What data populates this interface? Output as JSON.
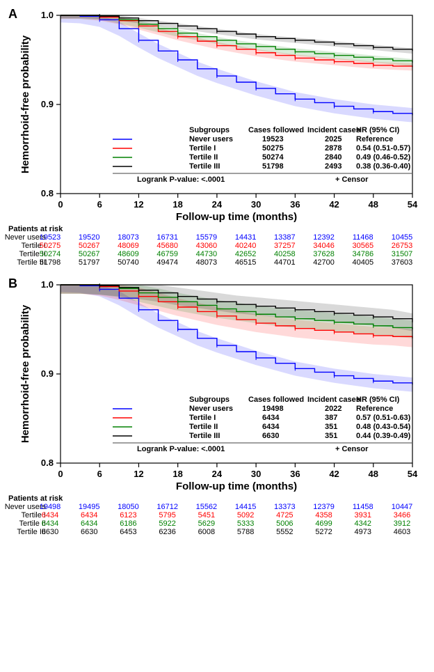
{
  "colors": {
    "never": "#0000ff",
    "t1": "#ff0000",
    "t2": "#008000",
    "t3": "#000000",
    "axis": "#000000",
    "bg": "#ffffff"
  },
  "panelA": {
    "label": "A",
    "ylabel": "Hemorrhoid-free probability",
    "xlabel": "Follow-up time (months)",
    "ylim": [
      0.8,
      1.0
    ],
    "yticks": [
      0.8,
      0.9,
      1.0
    ],
    "xlim": [
      0,
      54
    ],
    "xticks": [
      0,
      6,
      12,
      18,
      24,
      30,
      36,
      42,
      48,
      54
    ],
    "legend": {
      "headers": [
        "Subgroups",
        "Cases followed",
        "Incident cases",
        "HR (95% CI)"
      ],
      "rows": [
        {
          "color": "#0000ff",
          "name": "Never users",
          "cases": "19523",
          "incident": "2025",
          "hr": "Reference"
        },
        {
          "color": "#ff0000",
          "name": "Tertile I",
          "cases": "50275",
          "incident": "2878",
          "hr": "0.54 (0.51-0.57)"
        },
        {
          "color": "#008000",
          "name": "Tertile II",
          "cases": "50274",
          "incident": "2840",
          "hr": "0.49 (0.46-0.52)"
        },
        {
          "color": "#000000",
          "name": "Tertile III",
          "cases": "51798",
          "incident": "2493",
          "hr": "0.38 (0.36-0.40)"
        }
      ],
      "footer1": "Logrank P-value: <.0001",
      "footer2": "+ Censor"
    },
    "curves": {
      "never": [
        [
          0,
          1.0
        ],
        [
          3,
          0.999
        ],
        [
          6,
          0.995
        ],
        [
          9,
          0.985
        ],
        [
          12,
          0.972
        ],
        [
          15,
          0.96
        ],
        [
          18,
          0.95
        ],
        [
          21,
          0.94
        ],
        [
          24,
          0.932
        ],
        [
          27,
          0.925
        ],
        [
          30,
          0.918
        ],
        [
          33,
          0.912
        ],
        [
          36,
          0.906
        ],
        [
          39,
          0.902
        ],
        [
          42,
          0.898
        ],
        [
          45,
          0.895
        ],
        [
          48,
          0.892
        ],
        [
          51,
          0.89
        ],
        [
          54,
          0.888
        ]
      ],
      "t1": [
        [
          0,
          1.0
        ],
        [
          3,
          1.0
        ],
        [
          6,
          0.998
        ],
        [
          9,
          0.994
        ],
        [
          12,
          0.988
        ],
        [
          15,
          0.982
        ],
        [
          18,
          0.976
        ],
        [
          21,
          0.971
        ],
        [
          24,
          0.966
        ],
        [
          27,
          0.962
        ],
        [
          30,
          0.958
        ],
        [
          33,
          0.955
        ],
        [
          36,
          0.952
        ],
        [
          39,
          0.95
        ],
        [
          42,
          0.948
        ],
        [
          45,
          0.946
        ],
        [
          48,
          0.944
        ],
        [
          51,
          0.943
        ],
        [
          54,
          0.942
        ]
      ],
      "t2": [
        [
          0,
          1.0
        ],
        [
          3,
          1.0
        ],
        [
          6,
          0.999
        ],
        [
          9,
          0.995
        ],
        [
          12,
          0.99
        ],
        [
          15,
          0.985
        ],
        [
          18,
          0.98
        ],
        [
          21,
          0.976
        ],
        [
          24,
          0.972
        ],
        [
          27,
          0.968
        ],
        [
          30,
          0.965
        ],
        [
          33,
          0.962
        ],
        [
          36,
          0.959
        ],
        [
          39,
          0.957
        ],
        [
          42,
          0.955
        ],
        [
          45,
          0.953
        ],
        [
          48,
          0.951
        ],
        [
          51,
          0.949
        ],
        [
          54,
          0.947
        ]
      ],
      "t3": [
        [
          0,
          1.0
        ],
        [
          3,
          1.0
        ],
        [
          6,
          0.999
        ],
        [
          9,
          0.997
        ],
        [
          12,
          0.994
        ],
        [
          15,
          0.991
        ],
        [
          18,
          0.988
        ],
        [
          21,
          0.985
        ],
        [
          24,
          0.982
        ],
        [
          27,
          0.979
        ],
        [
          30,
          0.976
        ],
        [
          33,
          0.974
        ],
        [
          36,
          0.972
        ],
        [
          39,
          0.97
        ],
        [
          42,
          0.968
        ],
        [
          45,
          0.966
        ],
        [
          48,
          0.964
        ],
        [
          51,
          0.962
        ],
        [
          54,
          0.96
        ]
      ]
    },
    "ci_width": {
      "never": 0.008,
      "t1": 0.004,
      "t2": 0.004,
      "t3": 0.003
    },
    "risk": {
      "title": "Patients at risk",
      "labels": [
        "Never users",
        "Tertile I",
        "Tertile II",
        "Tertile III"
      ],
      "colors": [
        "#0000ff",
        "#ff0000",
        "#008000",
        "#000000"
      ],
      "rows": [
        [
          "19523",
          "19520",
          "18073",
          "16731",
          "15579",
          "14431",
          "13387",
          "12392",
          "11468",
          "10455"
        ],
        [
          "50275",
          "50267",
          "48069",
          "45680",
          "43060",
          "40240",
          "37257",
          "34046",
          "30565",
          "26753"
        ],
        [
          "50274",
          "50267",
          "48609",
          "46759",
          "44730",
          "42652",
          "40258",
          "37628",
          "34786",
          "31507"
        ],
        [
          "51798",
          "51797",
          "50740",
          "49474",
          "48073",
          "46515",
          "44701",
          "42700",
          "40405",
          "37603"
        ]
      ]
    }
  },
  "panelB": {
    "label": "B",
    "ylabel": "Hemorrhoid-free probability",
    "xlabel": "Follow-up time (months)",
    "ylim": [
      0.8,
      1.0
    ],
    "yticks": [
      0.8,
      0.9,
      1.0
    ],
    "xlim": [
      0,
      54
    ],
    "xticks": [
      0,
      6,
      12,
      18,
      24,
      30,
      36,
      42,
      48,
      54
    ],
    "legend": {
      "headers": [
        "Subgroups",
        "Cases followed",
        "Incident cases",
        "HR (95% CI)"
      ],
      "rows": [
        {
          "color": "#0000ff",
          "name": "Never users",
          "cases": "19498",
          "incident": "2022",
          "hr": "Reference"
        },
        {
          "color": "#ff0000",
          "name": "Tertile I",
          "cases": "6434",
          "incident": "387",
          "hr": "0.57 (0.51-0.63)"
        },
        {
          "color": "#008000",
          "name": "Tertile II",
          "cases": "6434",
          "incident": "351",
          "hr": "0.48 (0.43-0.54)"
        },
        {
          "color": "#000000",
          "name": "Tertile III",
          "cases": "6630",
          "incident": "351",
          "hr": "0.44 (0.39-0.49)"
        }
      ],
      "footer1": "Logrank P-value: <.0001",
      "footer2": "+ Censor"
    },
    "curves": {
      "never": [
        [
          0,
          1.0
        ],
        [
          3,
          0.999
        ],
        [
          6,
          0.995
        ],
        [
          9,
          0.985
        ],
        [
          12,
          0.972
        ],
        [
          15,
          0.96
        ],
        [
          18,
          0.95
        ],
        [
          21,
          0.94
        ],
        [
          24,
          0.932
        ],
        [
          27,
          0.925
        ],
        [
          30,
          0.918
        ],
        [
          33,
          0.912
        ],
        [
          36,
          0.906
        ],
        [
          39,
          0.902
        ],
        [
          42,
          0.898
        ],
        [
          45,
          0.895
        ],
        [
          48,
          0.892
        ],
        [
          51,
          0.89
        ],
        [
          54,
          0.888
        ]
      ],
      "t1": [
        [
          0,
          1.0
        ],
        [
          3,
          1.0
        ],
        [
          6,
          0.998
        ],
        [
          9,
          0.993
        ],
        [
          12,
          0.987
        ],
        [
          15,
          0.981
        ],
        [
          18,
          0.975
        ],
        [
          21,
          0.97
        ],
        [
          24,
          0.965
        ],
        [
          27,
          0.961
        ],
        [
          30,
          0.957
        ],
        [
          33,
          0.954
        ],
        [
          36,
          0.951
        ],
        [
          39,
          0.949
        ],
        [
          42,
          0.947
        ],
        [
          45,
          0.945
        ],
        [
          48,
          0.943
        ],
        [
          51,
          0.942
        ],
        [
          54,
          0.94
        ]
      ],
      "t2": [
        [
          0,
          1.0
        ],
        [
          3,
          1.0
        ],
        [
          6,
          0.999
        ],
        [
          9,
          0.996
        ],
        [
          12,
          0.991
        ],
        [
          15,
          0.986
        ],
        [
          18,
          0.981
        ],
        [
          21,
          0.977
        ],
        [
          24,
          0.973
        ],
        [
          27,
          0.97
        ],
        [
          30,
          0.967
        ],
        [
          33,
          0.964
        ],
        [
          36,
          0.962
        ],
        [
          39,
          0.96
        ],
        [
          42,
          0.958
        ],
        [
          45,
          0.956
        ],
        [
          48,
          0.954
        ],
        [
          51,
          0.952
        ],
        [
          54,
          0.95
        ]
      ],
      "t3": [
        [
          0,
          1.0
        ],
        [
          3,
          1.0
        ],
        [
          6,
          0.999
        ],
        [
          9,
          0.997
        ],
        [
          12,
          0.994
        ],
        [
          15,
          0.991
        ],
        [
          18,
          0.987
        ],
        [
          21,
          0.984
        ],
        [
          24,
          0.981
        ],
        [
          27,
          0.978
        ],
        [
          30,
          0.976
        ],
        [
          33,
          0.974
        ],
        [
          36,
          0.972
        ],
        [
          39,
          0.97
        ],
        [
          42,
          0.968
        ],
        [
          45,
          0.966
        ],
        [
          48,
          0.964
        ],
        [
          51,
          0.962
        ],
        [
          54,
          0.958
        ]
      ]
    },
    "ci_width": {
      "never": 0.008,
      "t1": 0.01,
      "t2": 0.01,
      "t3": 0.01
    },
    "risk": {
      "title": "Patients at risk",
      "labels": [
        "Never users",
        "Tertile I",
        "Tertile II",
        "Tertile III"
      ],
      "colors": [
        "#0000ff",
        "#ff0000",
        "#008000",
        "#000000"
      ],
      "rows": [
        [
          "19498",
          "19495",
          "18050",
          "16712",
          "15562",
          "14415",
          "13373",
          "12379",
          "11458",
          "10447"
        ],
        [
          "6434",
          "6434",
          "6123",
          "5795",
          "5451",
          "5092",
          "4725",
          "4358",
          "3931",
          "3466"
        ],
        [
          "6434",
          "6434",
          "6186",
          "5922",
          "5629",
          "5333",
          "5006",
          "4699",
          "4342",
          "3912"
        ],
        [
          "6630",
          "6630",
          "6453",
          "6236",
          "6008",
          "5788",
          "5552",
          "5272",
          "4973",
          "4603"
        ]
      ]
    }
  }
}
